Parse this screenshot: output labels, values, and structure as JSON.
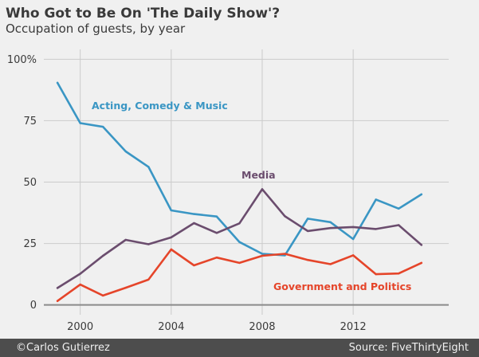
{
  "title": "Who Got to Be On 'The Daily Show'?",
  "subtitle": "Occupation of guests, by year",
  "footer": {
    "credit": "©Carlos Gutierrez",
    "source": "Source: FiveThirtyEight"
  },
  "chart_data": {
    "type": "line",
    "x": [
      1999,
      2000,
      2001,
      2002,
      2003,
      2004,
      2005,
      2006,
      2007,
      2008,
      2009,
      2010,
      2011,
      2012,
      2013,
      2014,
      2015
    ],
    "series": [
      {
        "name": "Acting, Comedy & Music",
        "color": "#3a96c4",
        "values": [
          90.4,
          74.0,
          72.5,
          62.5,
          56.2,
          38.5,
          37.0,
          36.0,
          25.6,
          20.8,
          20.2,
          35.1,
          33.7,
          26.8,
          42.9,
          39.2,
          45.0
        ]
      },
      {
        "name": "Media",
        "color": "#6b4d6e",
        "values": [
          6.9,
          12.7,
          20.0,
          26.5,
          24.7,
          27.5,
          33.3,
          29.3,
          33.2,
          47.1,
          36.1,
          30.1,
          31.3,
          31.7,
          30.9,
          32.5,
          24.4
        ]
      },
      {
        "name": "Government and Politics",
        "color": "#e5452a",
        "values": [
          1.6,
          8.3,
          3.8,
          7.0,
          10.3,
          22.6,
          16.1,
          19.3,
          17.1,
          20.0,
          20.8,
          18.3,
          16.6,
          20.2,
          12.5,
          12.8,
          17.1
        ]
      }
    ],
    "x_ticks": [
      2000,
      2004,
      2008,
      2012
    ],
    "y_ticks": [
      0,
      25,
      50,
      75,
      100
    ],
    "y_tick_labels": [
      "0",
      "25",
      "50",
      "75",
      "100%"
    ],
    "xlim": [
      1998.4,
      2016.2
    ],
    "ylim": [
      -4,
      104
    ],
    "grid": true,
    "legend": "inline labels"
  }
}
